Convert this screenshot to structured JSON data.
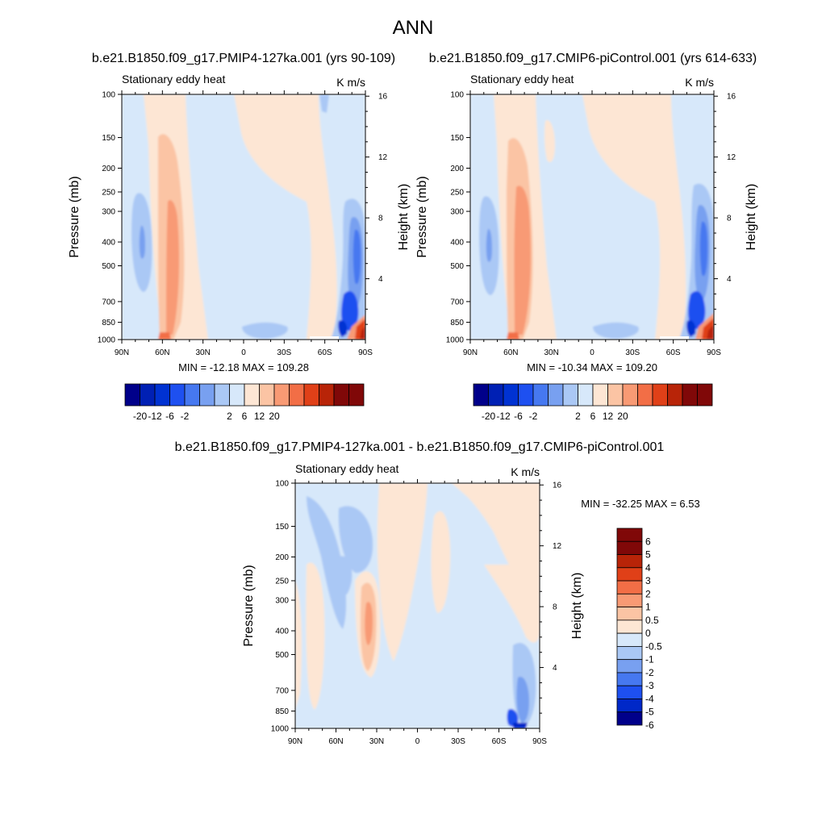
{
  "page_title": "ANN",
  "colors": {
    "palette_main": [
      "#00008a",
      "#0020b4",
      "#0032d2",
      "#1e50f0",
      "#4678f0",
      "#78a0f0",
      "#aac8f5",
      "#d7e8fa",
      "#fde6d4",
      "#fbc4a4",
      "#f89a74",
      "#f26e46",
      "#e04018",
      "#b82408",
      "#800808"
    ],
    "palette_diff": [
      "#00008a",
      "#0028c8",
      "#1e50f0",
      "#4678f0",
      "#78a0f0",
      "#aac8f5",
      "#d7e8fa",
      "#fde6d4",
      "#fbc4a4",
      "#f89a74",
      "#f26e46",
      "#e04018",
      "#b82408",
      "#800808"
    ]
  },
  "panel1": {
    "title": "b.e21.B1850.f09_g17.PMIP4-127ka.001 (yrs 90-109)",
    "left_label": "Stationary eddy heat",
    "right_label": "K m/s",
    "stats": "MIN = -12.18  MAX = 109.28",
    "y_title": "Pressure (mb)",
    "y2_title": "Height (km)"
  },
  "panel2": {
    "title": "b.e21.B1850.f09_g17.CMIP6-piControl.001 (yrs 614-633)",
    "left_label": "Stationary eddy heat",
    "right_label": "K m/s",
    "stats": "MIN = -10.34  MAX = 109.20",
    "y_title": "Pressure (mb)",
    "y2_title": "Height (km)"
  },
  "panel3": {
    "title": "b.e21.B1850.f09_g17.PMIP4-127ka.001 - b.e21.B1850.f09_g17.CMIP6-piControl.001",
    "left_label": "Stationary eddy heat",
    "right_label": "K m/s",
    "stats": "MIN = -32.25  MAX =   6.53",
    "y_title": "Pressure (mb)",
    "y2_title": "Height (km)"
  },
  "chart_data": [
    {
      "type": "heatmap",
      "title": "b.e21.B1850.f09_g17.PMIP4-127ka.001 (yrs 90-109)",
      "xlabel": "",
      "ylabel": "Pressure (mb)",
      "y2label": "Height (km)",
      "x_ticks": [
        "90N",
        "60N",
        "30N",
        "0",
        "30S",
        "60S",
        "90S"
      ],
      "y_ticks": [
        100,
        150,
        200,
        250,
        300,
        400,
        500,
        700,
        850,
        1000
      ],
      "y2_ticks": [
        4,
        8,
        12,
        16
      ],
      "xlim": [
        90,
        -90
      ],
      "ylim": [
        1000,
        100
      ],
      "min": -12.18,
      "max": 109.28,
      "colorbar_labels": [
        "-20",
        "-12",
        "-6",
        "-2",
        "2",
        "6",
        "12",
        "20"
      ]
    },
    {
      "type": "heatmap",
      "title": "b.e21.B1850.f09_g17.CMIP6-piControl.001 (yrs 614-633)",
      "xlabel": "",
      "ylabel": "Pressure (mb)",
      "y2label": "Height (km)",
      "x_ticks": [
        "90N",
        "60N",
        "30N",
        "0",
        "30S",
        "60S",
        "90S"
      ],
      "y_ticks": [
        100,
        150,
        200,
        250,
        300,
        400,
        500,
        700,
        850,
        1000
      ],
      "y2_ticks": [
        4,
        8,
        12,
        16
      ],
      "xlim": [
        90,
        -90
      ],
      "ylim": [
        1000,
        100
      ],
      "min": -10.34,
      "max": 109.2,
      "colorbar_labels": [
        "-20",
        "-12",
        "-6",
        "-2",
        "2",
        "6",
        "12",
        "20"
      ]
    },
    {
      "type": "heatmap",
      "title": "b.e21.B1850.f09_g17.PMIP4-127ka.001 - b.e21.B1850.f09_g17.CMIP6-piControl.001",
      "xlabel": "",
      "ylabel": "Pressure (mb)",
      "y2label": "Height (km)",
      "x_ticks": [
        "90N",
        "60N",
        "30N",
        "0",
        "30S",
        "60S",
        "90S"
      ],
      "y_ticks": [
        100,
        150,
        200,
        250,
        300,
        400,
        500,
        700,
        850,
        1000
      ],
      "y2_ticks": [
        4,
        8,
        12,
        16
      ],
      "xlim": [
        90,
        -90
      ],
      "ylim": [
        1000,
        100
      ],
      "min": -32.25,
      "max": 6.53,
      "colorbar_labels": [
        "6",
        "5",
        "4",
        "3",
        "2",
        "1",
        "0.5",
        "0",
        "-0.5",
        "-1",
        "-2",
        "-3",
        "-4",
        "-5",
        "-6"
      ]
    }
  ]
}
